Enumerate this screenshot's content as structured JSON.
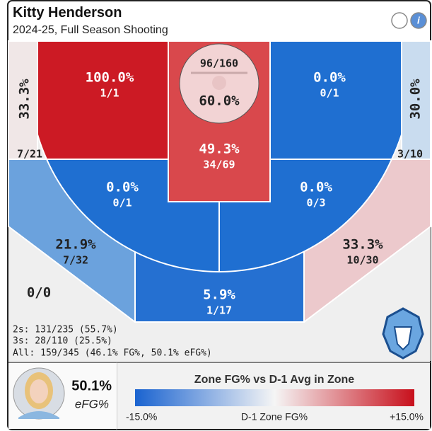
{
  "header": {
    "name": "Kitty Henderson",
    "subtitle": "2024-25, Full Season Shooting"
  },
  "zones": [
    {
      "pct": "100.0%",
      "shots": "1/1"
    },
    {
      "pct": "33.3%",
      "shots": "7/21"
    },
    {
      "pct": "30.0%",
      "shots": "3/10"
    },
    {
      "pct": "60.0%",
      "shots": "96/160"
    },
    {
      "pct": "49.3%",
      "shots": "34/69"
    },
    {
      "pct": "0.0%",
      "shots": "0/1"
    },
    {
      "pct": "0.0%",
      "shots": "0/1"
    },
    {
      "pct": "0.0%",
      "shots": "0/3"
    },
    {
      "pct": "21.9%",
      "shots": "7/32"
    },
    {
      "pct": "5.9%",
      "shots": "1/17"
    },
    {
      "pct": "33.3%",
      "shots": "10/30"
    },
    {
      "shots": "0/0"
    }
  ],
  "summary": [
    "2s: 131/235 (55.7%)",
    "3s: 28/110 (25.5%)",
    "All: 159/345 (46.1% FG%, 50.1% eFG%)"
  ],
  "footer": {
    "efg_value": "50.1%",
    "efg_label": "eFG%",
    "legend_title": "Zone FG% vs D-1 Avg in Zone",
    "min_label": "-15.0%",
    "mid_label": "D-1 Zone FG%",
    "max_label": "+15.0%"
  }
}
